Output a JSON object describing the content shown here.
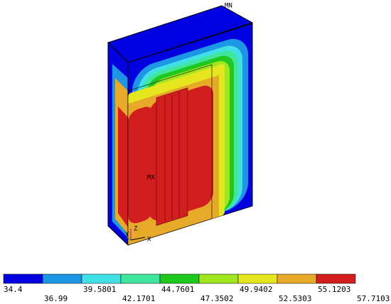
{
  "labels": {
    "mn": "MN",
    "mx": "MX"
  },
  "axes": {
    "x": "X",
    "y": "Y",
    "z": "Z"
  },
  "legend": {
    "colors": [
      "#0000e0",
      "#1e96e6",
      "#40e0e6",
      "#40e6a0",
      "#20c81e",
      "#a0e61e",
      "#e6e61e",
      "#e6aa28",
      "#d21e1e"
    ],
    "labels": [
      "34.4",
      "36.99",
      "39.5801",
      "42.1701",
      "44.7601",
      "47.3502",
      "49.9402",
      "52.5303",
      "55.1203",
      "57.7103"
    ]
  }
}
